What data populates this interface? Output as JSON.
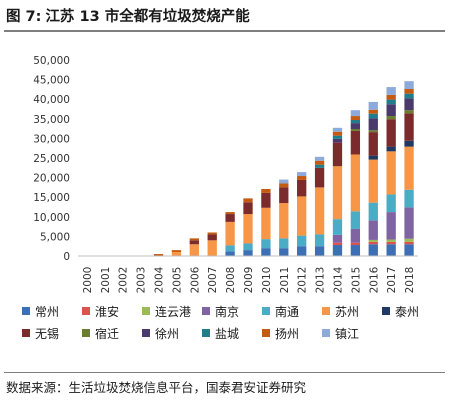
{
  "figure": {
    "number": "图 7:",
    "title": "江苏 13 市全都有垃圾焚烧产能"
  },
  "source_text": "数据来源：生活垃圾焚烧信息平台，国泰君安证券研究",
  "chart_data": {
    "type": "bar",
    "stacked": true,
    "title": "",
    "xlabel": "",
    "ylabel": "",
    "ylim": [
      0,
      50000
    ],
    "yticks": [
      0,
      5000,
      10000,
      15000,
      20000,
      25000,
      30000,
      35000,
      40000,
      45000,
      50000
    ],
    "ytick_labels": [
      "0",
      "5,000",
      "10,000",
      "15,000",
      "20,000",
      "25,000",
      "30,000",
      "35,000",
      "40,000",
      "45,000",
      "50,000"
    ],
    "grid": false,
    "legend_position": "bottom",
    "categories": [
      "2000",
      "2001",
      "2002",
      "2003",
      "2004",
      "2005",
      "2006",
      "2007",
      "2008",
      "2009",
      "2010",
      "2011",
      "2012",
      "2013",
      "2014",
      "2015",
      "2016",
      "2017",
      "2018"
    ],
    "series": [
      {
        "name": "常州",
        "color": "#3c6fb4",
        "values": [
          0,
          0,
          0,
          0,
          0,
          0,
          0,
          0,
          1200,
          1500,
          2000,
          2000,
          2500,
          2500,
          2800,
          2800,
          3000,
          3000,
          3000
        ]
      },
      {
        "name": "淮安",
        "color": "#d9534f",
        "values": [
          0,
          0,
          0,
          0,
          0,
          0,
          0,
          0,
          0,
          0,
          0,
          0,
          0,
          0,
          600,
          600,
          600,
          600,
          600
        ]
      },
      {
        "name": "连云港",
        "color": "#9bbb59",
        "values": [
          0,
          0,
          0,
          0,
          0,
          0,
          0,
          0,
          0,
          0,
          0,
          0,
          0,
          0,
          0,
          0,
          500,
          600,
          800
        ]
      },
      {
        "name": "南京",
        "color": "#8064a2",
        "values": [
          0,
          0,
          0,
          0,
          0,
          0,
          0,
          0,
          0,
          0,
          0,
          0,
          0,
          0,
          2000,
          3500,
          5000,
          7000,
          8000
        ]
      },
      {
        "name": "南通",
        "color": "#4bacc6",
        "values": [
          0,
          0,
          0,
          0,
          0,
          0,
          0,
          0,
          1500,
          1700,
          2300,
          2500,
          2700,
          3000,
          4000,
          4500,
          4500,
          4500,
          4500
        ]
      },
      {
        "name": "苏州",
        "color": "#f79646",
        "values": [
          0,
          0,
          0,
          0,
          0,
          1000,
          3000,
          4000,
          6000,
          7500,
          8000,
          9000,
          10000,
          12000,
          13500,
          14500,
          11000,
          11000,
          11000
        ]
      },
      {
        "name": "泰州",
        "color": "#1f3864",
        "values": [
          0,
          0,
          0,
          0,
          0,
          0,
          0,
          0,
          0,
          0,
          0,
          0,
          0,
          0,
          0,
          0,
          1000,
          1200,
          1500
        ]
      },
      {
        "name": "无锡",
        "color": "#7b2b2b",
        "values": [
          0,
          0,
          0,
          0,
          0,
          0,
          1000,
          1500,
          2000,
          3000,
          3800,
          4000,
          4200,
          5000,
          6000,
          6000,
          6000,
          7000,
          7000
        ]
      },
      {
        "name": "宿迁",
        "color": "#6b7d2f",
        "values": [
          0,
          0,
          0,
          0,
          0,
          0,
          0,
          0,
          0,
          0,
          0,
          0,
          0,
          0,
          0,
          500,
          500,
          800,
          800
        ]
      },
      {
        "name": "徐州",
        "color": "#4a3a6b",
        "values": [
          0,
          0,
          0,
          0,
          0,
          0,
          0,
          0,
          0,
          0,
          0,
          0,
          0,
          0,
          1000,
          1500,
          3000,
          3000,
          3000
        ]
      },
      {
        "name": "盐城",
        "color": "#217c8c",
        "values": [
          0,
          0,
          0,
          0,
          0,
          0,
          0,
          0,
          0,
          0,
          0,
          0,
          0,
          800,
          800,
          800,
          1200,
          1200,
          1200
        ]
      },
      {
        "name": "扬州",
        "color": "#c55a11",
        "values": [
          0,
          0,
          0,
          0,
          500,
          500,
          500,
          500,
          500,
          1000,
          1000,
          1000,
          1000,
          1000,
          1000,
          1000,
          1000,
          1200,
          1200
        ]
      },
      {
        "name": "镇江",
        "color": "#8eaadb",
        "values": [
          0,
          0,
          0,
          0,
          0,
          0,
          0,
          0,
          0,
          0,
          0,
          1000,
          1000,
          1000,
          1000,
          1500,
          2000,
          2000,
          2000
        ]
      }
    ]
  }
}
